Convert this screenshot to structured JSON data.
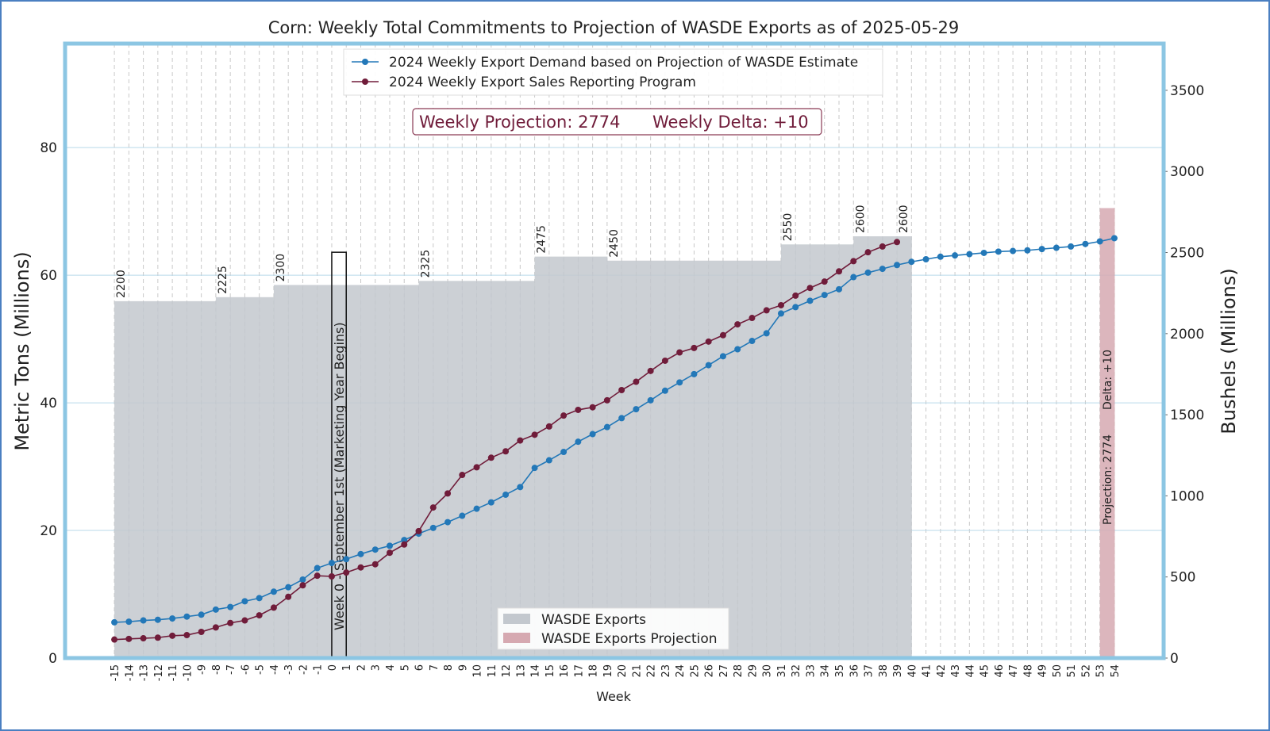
{
  "chart_data": {
    "type": "bar",
    "title": "Corn: Weekly Total Commitments to Projection of WASDE Exports as of 2025-05-29",
    "xlabel": "Week",
    "ylabel": "Metric Tons (Millions)",
    "y2label": "Bushels (Millions)",
    "xlim": [
      -18.4,
      57.4
    ],
    "xticks": [
      -15,
      -14,
      -13,
      -12,
      -11,
      -10,
      -9,
      -8,
      -7,
      -6,
      -5,
      -4,
      -3,
      -2,
      -1,
      0,
      1,
      2,
      3,
      4,
      5,
      6,
      7,
      8,
      9,
      10,
      11,
      12,
      13,
      14,
      15,
      16,
      17,
      18,
      19,
      20,
      21,
      22,
      23,
      24,
      25,
      26,
      27,
      28,
      29,
      30,
      31,
      32,
      33,
      34,
      35,
      36,
      37,
      38,
      39,
      40,
      41,
      42,
      43,
      44,
      45,
      46,
      47,
      48,
      49,
      50,
      51,
      52,
      53,
      54
    ],
    "ylim": [
      0,
      96.3
    ],
    "yticks": [
      0,
      20,
      40,
      60,
      80
    ],
    "y2lim": [
      0,
      3788
    ],
    "y2ticks": [
      0,
      500,
      1000,
      1500,
      2000,
      2500,
      3000,
      3500
    ],
    "grid": true,
    "series": [
      {
        "name": "WASDE Exports",
        "type": "bar",
        "axis": "y2",
        "color": "#c3c8ce",
        "x": [
          -15,
          -14,
          -13,
          -12,
          -11,
          -10,
          -9,
          -8,
          -7,
          -6,
          -5,
          -4,
          -3,
          -2,
          -1,
          0,
          1,
          2,
          3,
          4,
          5,
          6,
          7,
          8,
          9,
          10,
          11,
          12,
          13,
          14,
          15,
          16,
          17,
          18,
          19,
          20,
          21,
          22,
          23,
          24,
          25,
          26,
          27,
          28,
          29,
          30,
          31,
          32,
          33,
          34,
          35,
          36,
          37,
          38,
          39
        ],
        "values": [
          2200,
          2200,
          2200,
          2200,
          2200,
          2200,
          2200,
          2225,
          2225,
          2225,
          2225,
          2300,
          2300,
          2300,
          2300,
          2300,
          2300,
          2300,
          2300,
          2300,
          2300,
          2325,
          2325,
          2325,
          2325,
          2325,
          2325,
          2325,
          2325,
          2475,
          2475,
          2475,
          2475,
          2475,
          2450,
          2450,
          2450,
          2450,
          2450,
          2450,
          2450,
          2450,
          2450,
          2450,
          2450,
          2450,
          2550,
          2550,
          2550,
          2550,
          2550,
          2600,
          2600,
          2600,
          2600
        ]
      },
      {
        "name": "WASDE Exports Projection",
        "type": "bar",
        "axis": "y2",
        "color": "#d6a9b1",
        "x": [
          53
        ],
        "values": [
          2774
        ]
      },
      {
        "name": "2024 Weekly Export Demand based on Projection of WASDE Estimate",
        "type": "line",
        "color": "#2378b8",
        "x": [
          -15,
          -14,
          -13,
          -12,
          -11,
          -10,
          -9,
          -8,
          -7,
          -6,
          -5,
          -4,
          -3,
          -2,
          -1,
          0,
          1,
          2,
          3,
          4,
          5,
          6,
          7,
          8,
          9,
          10,
          11,
          12,
          13,
          14,
          15,
          16,
          17,
          18,
          19,
          20,
          21,
          22,
          23,
          24,
          25,
          26,
          27,
          28,
          29,
          30,
          31,
          32,
          33,
          34,
          35,
          36,
          37,
          38,
          39,
          40,
          41,
          42,
          43,
          44,
          45,
          46,
          47,
          48,
          49,
          50,
          51,
          52,
          53,
          54
        ],
        "values": [
          5.6,
          5.7,
          5.9,
          6.0,
          6.2,
          6.5,
          6.8,
          7.6,
          8.0,
          8.9,
          9.4,
          10.4,
          11.1,
          12.3,
          14.1,
          14.9,
          15.5,
          16.3,
          17.0,
          17.6,
          18.5,
          19.5,
          20.4,
          21.3,
          22.3,
          23.4,
          24.4,
          25.6,
          26.8,
          29.8,
          31.0,
          32.3,
          33.9,
          35.1,
          36.2,
          37.6,
          39.0,
          40.4,
          41.9,
          43.2,
          44.5,
          45.9,
          47.3,
          48.4,
          49.7,
          50.9,
          54.0,
          55.0,
          56.0,
          56.9,
          57.8,
          59.7,
          60.4,
          61.0,
          61.6,
          62.1,
          62.5,
          62.9,
          63.1,
          63.3,
          63.5,
          63.7,
          63.8,
          63.9,
          64.1,
          64.3,
          64.5,
          64.9,
          65.3,
          65.8
        ]
      },
      {
        "name": "2024 Weekly Export Sales Reporting Program",
        "type": "line",
        "color": "#701c3a",
        "x": [
          -15,
          -14,
          -13,
          -12,
          -11,
          -10,
          -9,
          -8,
          -7,
          -6,
          -5,
          -4,
          -3,
          -2,
          -1,
          0,
          1,
          2,
          3,
          4,
          5,
          6,
          7,
          8,
          9,
          10,
          11,
          12,
          13,
          14,
          15,
          16,
          17,
          18,
          19,
          20,
          21,
          22,
          23,
          24,
          25,
          26,
          27,
          28,
          29,
          30,
          31,
          32,
          33,
          34,
          35,
          36,
          37,
          38,
          39
        ],
        "values": [
          2.9,
          3.0,
          3.1,
          3.2,
          3.5,
          3.6,
          4.1,
          4.8,
          5.5,
          5.9,
          6.7,
          7.9,
          9.6,
          11.4,
          12.9,
          12.8,
          13.4,
          14.2,
          14.7,
          16.5,
          17.8,
          19.9,
          23.6,
          25.8,
          28.7,
          29.9,
          31.4,
          32.4,
          34.1,
          35.0,
          36.3,
          38.0,
          38.9,
          39.3,
          40.4,
          42.0,
          43.3,
          45.0,
          46.6,
          47.9,
          48.6,
          49.6,
          50.6,
          52.3,
          53.3,
          54.5,
          55.3,
          56.8,
          58.0,
          59.0,
          60.6,
          62.2,
          63.6,
          64.5,
          65.2
        ]
      }
    ],
    "marker": {
      "x": 0,
      "top": 63.6,
      "label": "Week 0 - September 1st (Marketing Year Begins)"
    },
    "summary_box": [
      "Weekly Projection: 2774",
      "Weekly Delta: +10"
    ],
    "projection_labels": [
      "Projection: 2774",
      "Delta: +10"
    ]
  }
}
